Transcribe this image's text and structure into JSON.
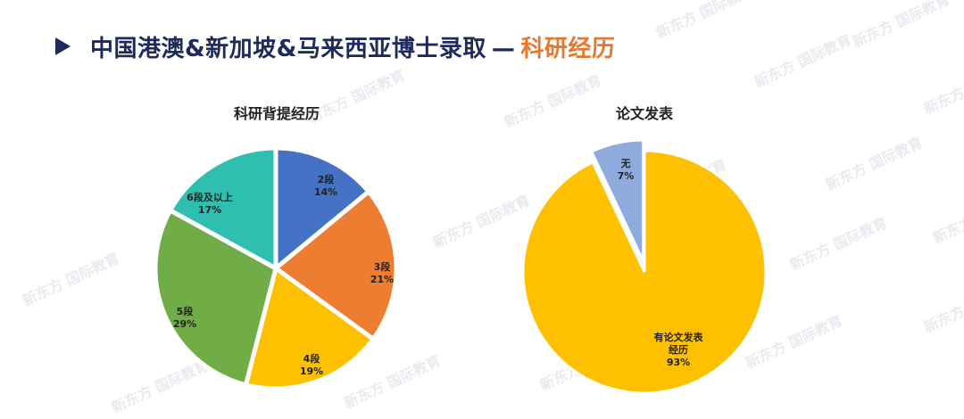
{
  "header": {
    "title_main": "中国港澳&新加坡&马来西亚博士录取",
    "title_dash": "—",
    "title_accent": "科研经历",
    "accent_color": "#e8772e",
    "title_color": "#1c2a5c"
  },
  "watermark": {
    "brand": "新东方",
    "sub": "国际教育"
  },
  "chart_data": [
    {
      "type": "pie",
      "title": "科研背提经历",
      "slices": [
        {
          "label": "2段",
          "value": 14,
          "pct": "14%",
          "color": "#4472c4"
        },
        {
          "label": "3段",
          "value": 21,
          "pct": "21%",
          "color": "#ed7d31"
        },
        {
          "label": "4段",
          "value": 19,
          "pct": "19%",
          "color": "#ffc000"
        },
        {
          "label": "5段",
          "value": 29,
          "pct": "29%",
          "color": "#70ad47"
        },
        {
          "label": "6段及以上",
          "value": 17,
          "pct": "17%",
          "color": "#2fbfb0"
        }
      ]
    },
    {
      "type": "pie",
      "title": "论文发表",
      "slices": [
        {
          "label": "有论文发表经历",
          "value": 93,
          "pct": "93%",
          "color": "#ffc000"
        },
        {
          "label": "无",
          "value": 7,
          "pct": "7%",
          "color": "#8faadc"
        }
      ]
    }
  ]
}
